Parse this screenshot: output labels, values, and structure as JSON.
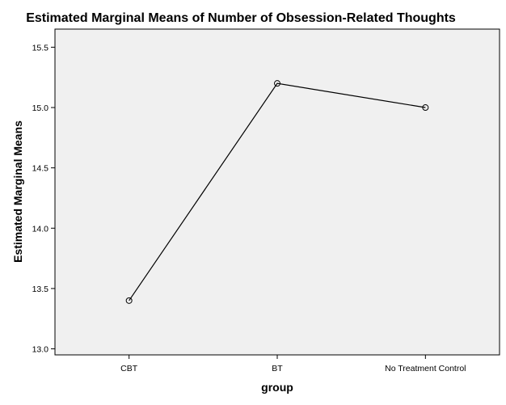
{
  "chart_data": {
    "type": "line",
    "title": "Estimated Marginal Means of Number of Obsession-Related Thoughts",
    "xlabel": "group",
    "ylabel": "Estimated Marginal Means",
    "categories": [
      "CBT",
      "BT",
      "No Treatment Control"
    ],
    "series": [
      {
        "values": [
          13.4,
          15.2,
          15.0
        ]
      }
    ],
    "ylim": [
      12.95,
      15.65
    ],
    "yticks": [
      13.0,
      13.5,
      14.0,
      14.5,
      15.0,
      15.5
    ],
    "ytick_labels": [
      "13.0",
      "13.5",
      "14.0",
      "14.5",
      "15.0",
      "15.5"
    ],
    "grid": false,
    "legend": "none",
    "marker": "open-circle",
    "colors": {
      "plot_background": "#f0f0f0",
      "line": "#000000",
      "frame": "#000000"
    }
  }
}
